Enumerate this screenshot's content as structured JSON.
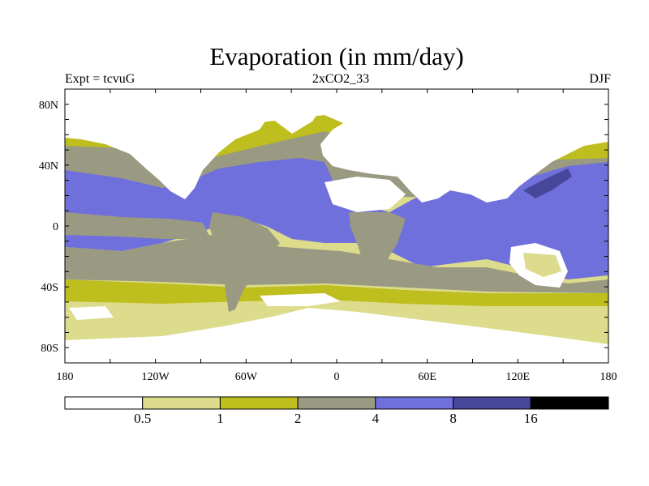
{
  "title": "Evaporation (in mm/day)",
  "subtitle_left": "Expt = tcvuG",
  "subtitle_center": "2xCO2_33",
  "subtitle_right": "DJF",
  "chart_data": {
    "type": "heatmap",
    "variable": "Evaporation",
    "units": "mm/day",
    "season": "DJF",
    "experiment": "tcvuG",
    "run": "2xCO2_33",
    "x_ticks": [
      "180",
      "120W",
      "60W",
      "0",
      "60E",
      "120E",
      "180"
    ],
    "y_ticks": [
      "80N",
      "40N",
      "0",
      "40S",
      "80S"
    ],
    "xlim": [
      -180,
      180
    ],
    "ylim": [
      -90,
      90
    ],
    "colorbar": {
      "levels": [
        "0.5",
        "1",
        "2",
        "4",
        "8",
        "16"
      ],
      "colors": [
        "#ffffff",
        "#dcdc8c",
        "#bebe1e",
        "#9a9a82",
        "#7070dc",
        "#46469a",
        "#000000"
      ]
    },
    "zonal_bands": [
      {
        "lat_range": [
          60,
          90
        ],
        "value_class": "<0.5"
      },
      {
        "lat_range": [
          45,
          60
        ],
        "value_class": "1-2 over ocean, <0.5 over land"
      },
      {
        "lat_range": [
          20,
          45
        ],
        "value_class": "2-4"
      },
      {
        "lat_range": [
          -25,
          20
        ],
        "value_class": "4-8 (8-16 over West Pacific)"
      },
      {
        "lat_range": [
          -45,
          -25
        ],
        "value_class": "2-4"
      },
      {
        "lat_range": [
          -60,
          -45
        ],
        "value_class": "1-2"
      },
      {
        "lat_range": [
          -90,
          -60
        ],
        "value_class": "0.5-1 over ocean, <0.5 over Antarctica"
      }
    ]
  }
}
